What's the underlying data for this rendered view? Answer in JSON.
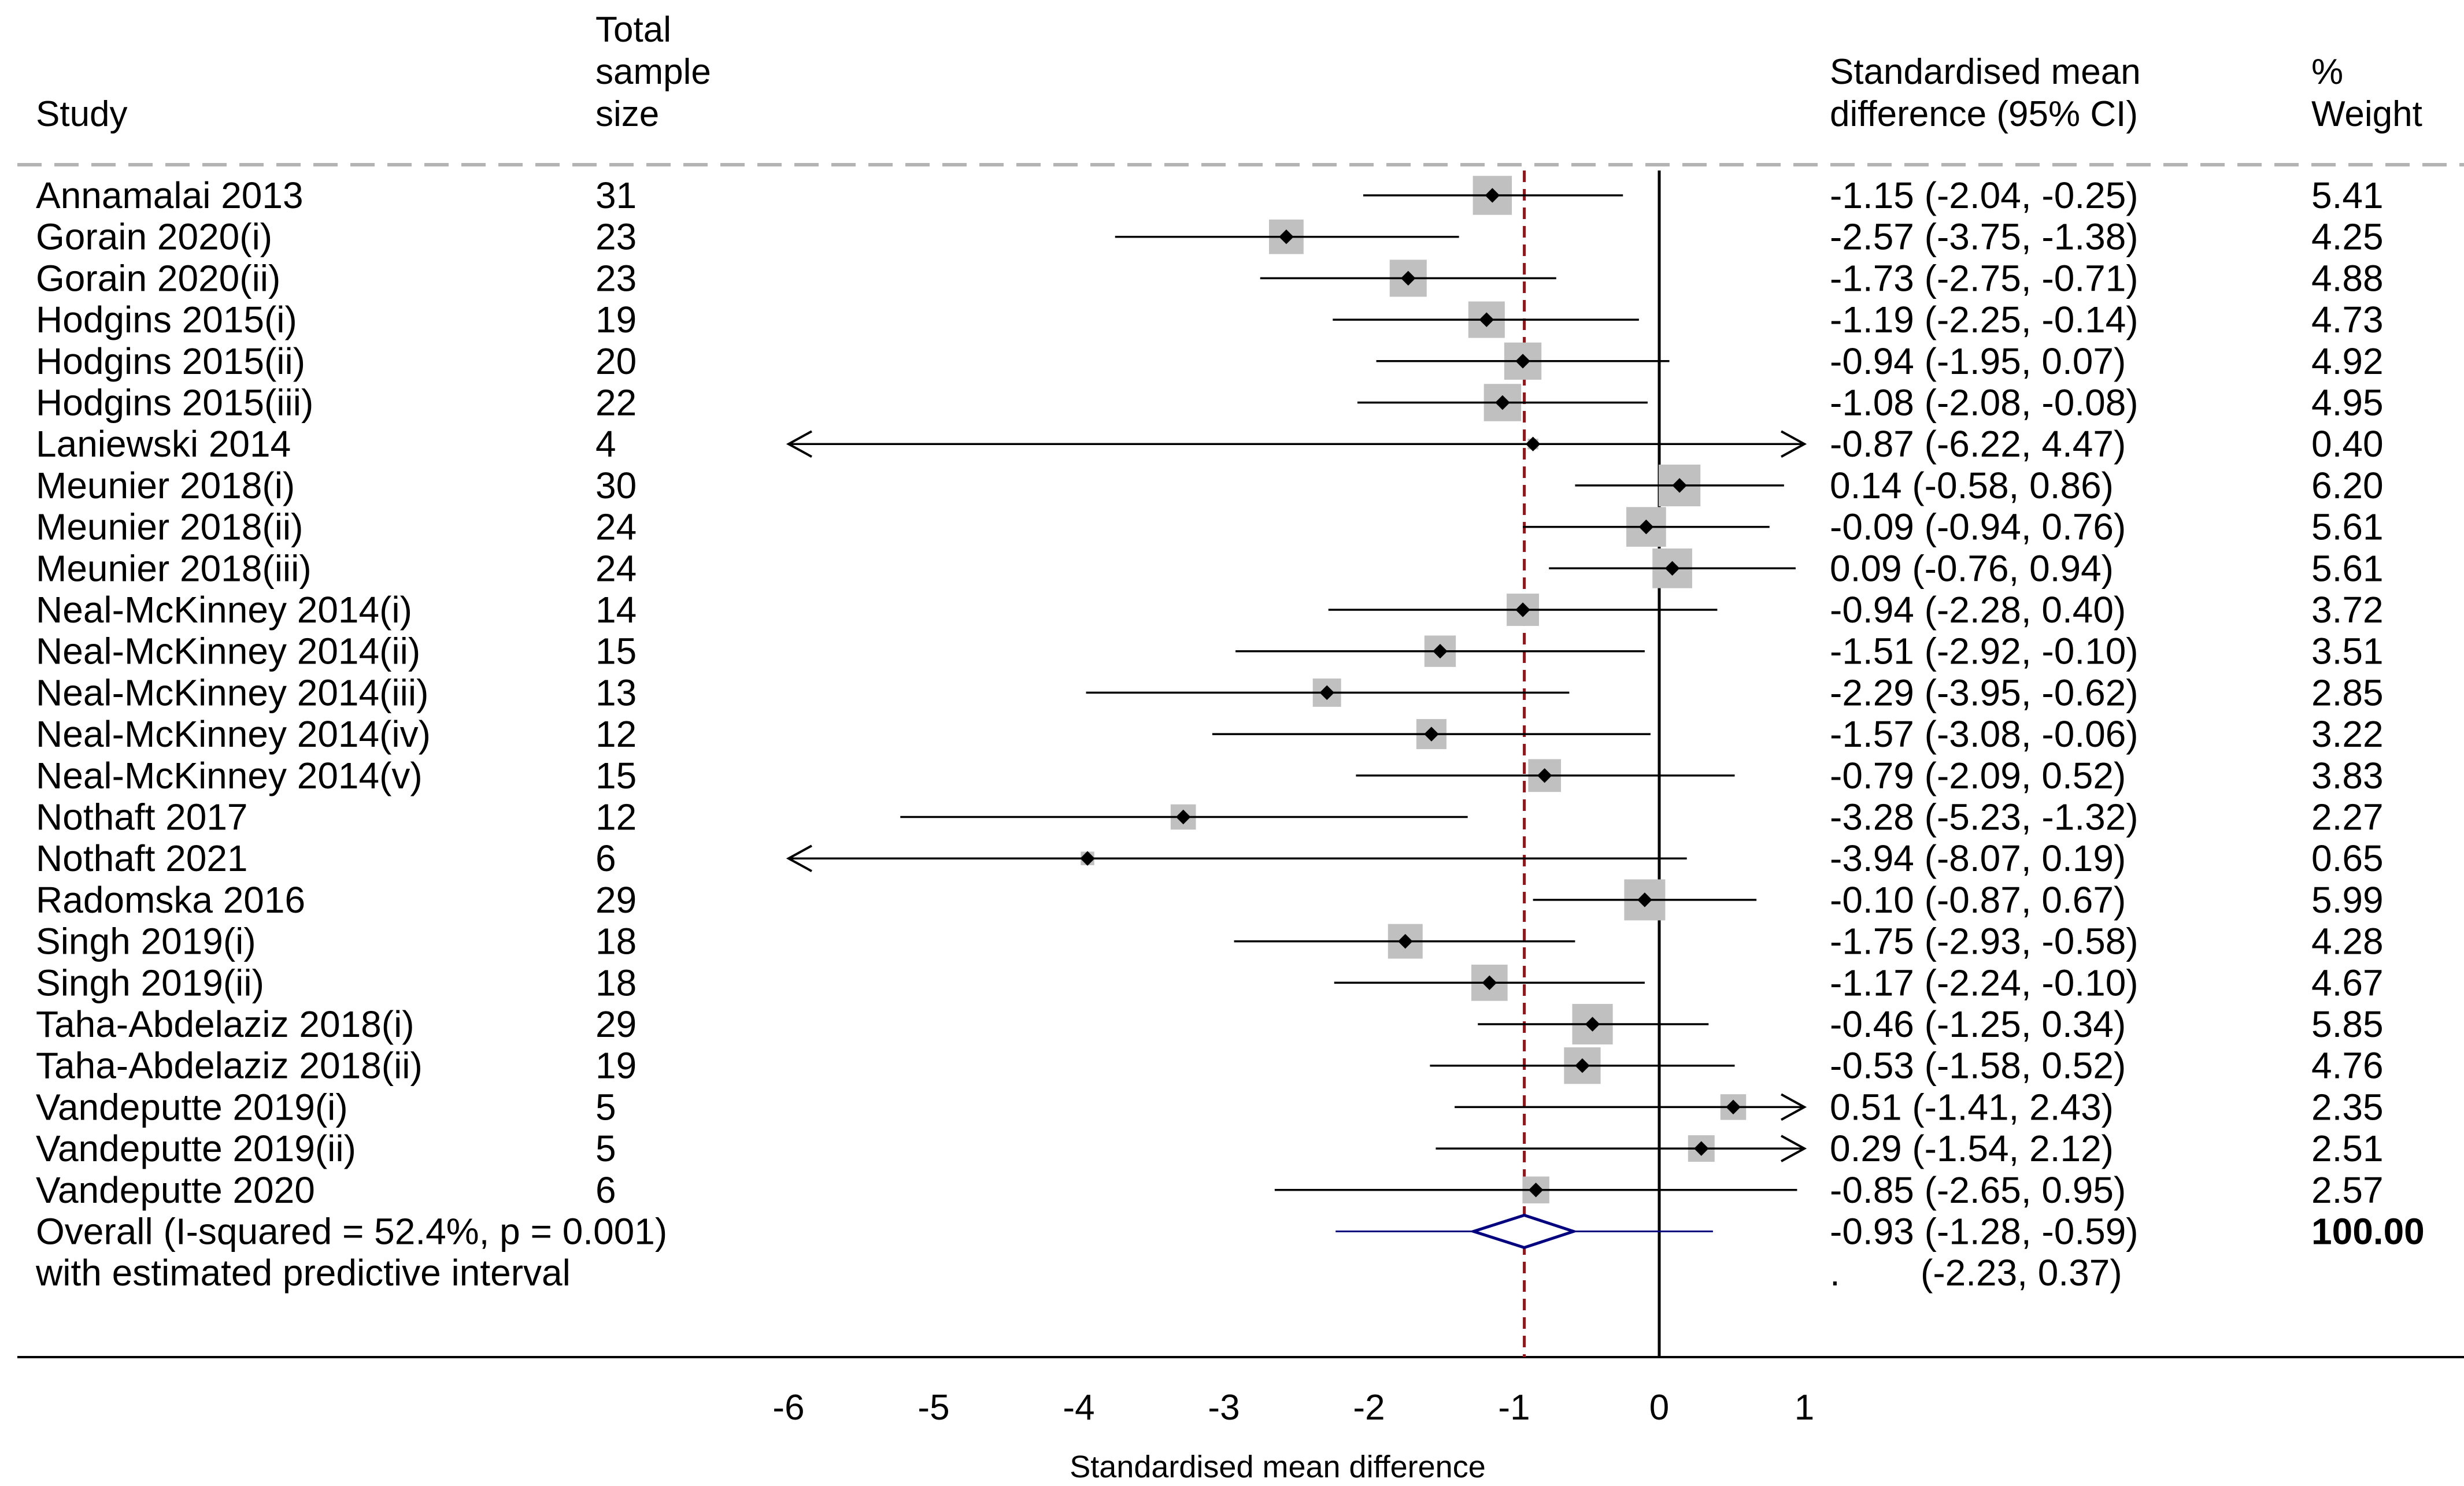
{
  "header": {
    "study": "Study",
    "sample_lines": [
      "Total",
      "sample",
      "size"
    ],
    "smd_lines": [
      "Standardised mean",
      "difference (95% CI)"
    ],
    "weight_lines": [
      "%",
      "Weight"
    ]
  },
  "chart_data": {
    "type": "forest",
    "xlabel": "Standardised mean difference",
    "xlim": [
      -6,
      1
    ],
    "xticks": [
      "-6",
      "-5",
      "-4",
      "-3",
      "-2",
      "-1",
      "0",
      "1"
    ],
    "null_line": 0,
    "overall_line": -0.93,
    "studies": [
      {
        "study": "Annamalai 2013",
        "n": "31",
        "est": -1.15,
        "lo": -2.04,
        "hi": -0.25,
        "ci_text": "-1.15 (-2.04, -0.25)",
        "weight": "5.41",
        "w": 5.41
      },
      {
        "study": "Gorain 2020(i)",
        "n": "23",
        "est": -2.57,
        "lo": -3.75,
        "hi": -1.38,
        "ci_text": "-2.57 (-3.75, -1.38)",
        "weight": "4.25",
        "w": 4.25
      },
      {
        "study": "Gorain 2020(ii)",
        "n": "23",
        "est": -1.73,
        "lo": -2.75,
        "hi": -0.71,
        "ci_text": "-1.73 (-2.75, -0.71)",
        "weight": "4.88",
        "w": 4.88
      },
      {
        "study": "Hodgins 2015(i)",
        "n": "19",
        "est": -1.19,
        "lo": -2.25,
        "hi": -0.14,
        "ci_text": "-1.19 (-2.25, -0.14)",
        "weight": "4.73",
        "w": 4.73
      },
      {
        "study": "Hodgins 2015(ii)",
        "n": "20",
        "est": -0.94,
        "lo": -1.95,
        "hi": 0.07,
        "ci_text": "-0.94 (-1.95, 0.07)",
        "weight": "4.92",
        "w": 4.92
      },
      {
        "study": "Hodgins 2015(iii)",
        "n": "22",
        "est": -1.08,
        "lo": -2.08,
        "hi": -0.08,
        "ci_text": "-1.08 (-2.08, -0.08)",
        "weight": "4.95",
        "w": 4.95
      },
      {
        "study": "Laniewski 2014",
        "n": "4",
        "est": -0.87,
        "lo": -6.22,
        "hi": 4.47,
        "ci_text": "-0.87 (-6.22, 4.47)",
        "weight": "0.40",
        "w": 0.4
      },
      {
        "study": "Meunier 2018(i)",
        "n": "30",
        "est": 0.14,
        "lo": -0.58,
        "hi": 0.86,
        "ci_text": "0.14 (-0.58, 0.86)",
        "weight": "6.20",
        "w": 6.2
      },
      {
        "study": "Meunier 2018(ii)",
        "n": "24",
        "est": -0.09,
        "lo": -0.94,
        "hi": 0.76,
        "ci_text": "-0.09 (-0.94, 0.76)",
        "weight": "5.61",
        "w": 5.61
      },
      {
        "study": "Meunier 2018(iii)",
        "n": "24",
        "est": 0.09,
        "lo": -0.76,
        "hi": 0.94,
        "ci_text": "0.09 (-0.76, 0.94)",
        "weight": "5.61",
        "w": 5.61
      },
      {
        "study": "Neal-McKinney 2014(i)",
        "n": "14",
        "est": -0.94,
        "lo": -2.28,
        "hi": 0.4,
        "ci_text": "-0.94 (-2.28, 0.40)",
        "weight": "3.72",
        "w": 3.72
      },
      {
        "study": "Neal-McKinney 2014(ii)",
        "n": "15",
        "est": -1.51,
        "lo": -2.92,
        "hi": -0.1,
        "ci_text": "-1.51 (-2.92, -0.10)",
        "weight": "3.51",
        "w": 3.51
      },
      {
        "study": "Neal-McKinney 2014(iii)",
        "n": "13",
        "est": -2.29,
        "lo": -3.95,
        "hi": -0.62,
        "ci_text": "-2.29 (-3.95, -0.62)",
        "weight": "2.85",
        "w": 2.85
      },
      {
        "study": "Neal-McKinney 2014(iv)",
        "n": "12",
        "est": -1.57,
        "lo": -3.08,
        "hi": -0.06,
        "ci_text": "-1.57 (-3.08, -0.06)",
        "weight": "3.22",
        "w": 3.22
      },
      {
        "study": "Neal-McKinney 2014(v)",
        "n": "15",
        "est": -0.79,
        "lo": -2.09,
        "hi": 0.52,
        "ci_text": "-0.79 (-2.09, 0.52)",
        "weight": "3.83",
        "w": 3.83
      },
      {
        "study": "Nothaft 2017",
        "n": "12",
        "est": -3.28,
        "lo": -5.23,
        "hi": -1.32,
        "ci_text": "-3.28 (-5.23, -1.32)",
        "weight": "2.27",
        "w": 2.27
      },
      {
        "study": "Nothaft 2021",
        "n": "6",
        "est": -3.94,
        "lo": -8.07,
        "hi": 0.19,
        "ci_text": "-3.94 (-8.07, 0.19)",
        "weight": "0.65",
        "w": 0.65
      },
      {
        "study": "Radomska 2016",
        "n": "29",
        "est": -0.1,
        "lo": -0.87,
        "hi": 0.67,
        "ci_text": "-0.10 (-0.87, 0.67)",
        "weight": "5.99",
        "w": 5.99
      },
      {
        "study": "Singh 2019(i)",
        "n": "18",
        "est": -1.75,
        "lo": -2.93,
        "hi": -0.58,
        "ci_text": "-1.75 (-2.93, -0.58)",
        "weight": "4.28",
        "w": 4.28
      },
      {
        "study": "Singh 2019(ii)",
        "n": "18",
        "est": -1.17,
        "lo": -2.24,
        "hi": -0.1,
        "ci_text": "-1.17 (-2.24, -0.10)",
        "weight": "4.67",
        "w": 4.67
      },
      {
        "study": "Taha-Abdelaziz 2018(i)",
        "n": "29",
        "est": -0.46,
        "lo": -1.25,
        "hi": 0.34,
        "ci_text": "-0.46 (-1.25, 0.34)",
        "weight": "5.85",
        "w": 5.85
      },
      {
        "study": "Taha-Abdelaziz 2018(ii)",
        "n": "19",
        "est": -0.53,
        "lo": -1.58,
        "hi": 0.52,
        "ci_text": "-0.53 (-1.58, 0.52)",
        "weight": "4.76",
        "w": 4.76
      },
      {
        "study": "Vandeputte 2019(i)",
        "n": "5",
        "est": 0.51,
        "lo": -1.41,
        "hi": 2.43,
        "ci_text": "0.51 (-1.41, 2.43)",
        "weight": "2.35",
        "w": 2.35
      },
      {
        "study": "Vandeputte 2019(ii)",
        "n": "5",
        "est": 0.29,
        "lo": -1.54,
        "hi": 2.12,
        "ci_text": "0.29 (-1.54, 2.12)",
        "weight": "2.51",
        "w": 2.51
      },
      {
        "study": "Vandeputte 2020",
        "n": "6",
        "est": -0.85,
        "lo": -2.65,
        "hi": 0.95,
        "ci_text": "-0.85 (-2.65, 0.95)",
        "weight": "2.57",
        "w": 2.57
      }
    ],
    "overall": {
      "label": "Overall  (I-squared = 52.4%, p = 0.001)",
      "est": -0.93,
      "lo": -1.28,
      "hi": -0.59,
      "ci_text": "-0.93 (-1.28, -0.59)",
      "weight": "100.00",
      "pred_label": "with estimated predictive interval",
      "pred_lo": -2.23,
      "pred_hi": 0.37,
      "pred_dot": ".",
      "pred_text": "(-2.23, 0.37)"
    },
    "colors": {
      "box": "#c0c0c0",
      "overall_line": "#8b1a1a",
      "diamond": "#00007f"
    }
  }
}
